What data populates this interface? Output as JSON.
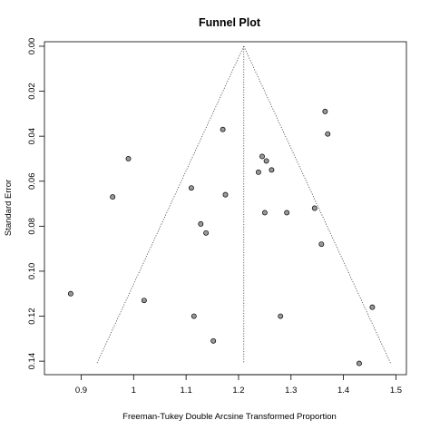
{
  "chart_data": {
    "type": "scatter",
    "title": "Funnel Plot",
    "xlabel": "Freeman-Tukey Double Arcsine Transformed Proportion",
    "ylabel": "Standard Error",
    "xlim": [
      0.83,
      1.52
    ],
    "ylim": [
      0.146,
      -0.002
    ],
    "y_axis_reversed": true,
    "x_ticks": [
      0.9,
      1.0,
      1.1,
      1.2,
      1.3,
      1.4,
      1.5
    ],
    "x_tick_labels": [
      "0.9",
      "1",
      "1.1",
      "1.2",
      "1.3",
      "1.4",
      "1.5"
    ],
    "y_ticks": [
      0.0,
      0.02,
      0.04,
      0.06,
      0.08,
      0.1,
      0.12,
      0.14
    ],
    "y_tick_labels": [
      "0.00",
      "0.02",
      "0.04",
      "0.06",
      "0.08",
      "0.10",
      "0.12",
      "0.14"
    ],
    "pooled_estimate": 1.21,
    "funnel": {
      "apex": [
        1.21,
        0.0
      ],
      "left_base": [
        0.93,
        0.141
      ],
      "right_base": [
        1.49,
        0.141
      ]
    },
    "grid": false,
    "legend": "none",
    "marker_color": "#999999",
    "points": [
      {
        "x": 1.365,
        "y": 0.029
      },
      {
        "x": 1.17,
        "y": 0.037
      },
      {
        "x": 1.37,
        "y": 0.039
      },
      {
        "x": 0.99,
        "y": 0.05
      },
      {
        "x": 1.245,
        "y": 0.049
      },
      {
        "x": 1.253,
        "y": 0.051
      },
      {
        "x": 1.263,
        "y": 0.055
      },
      {
        "x": 1.238,
        "y": 0.056
      },
      {
        "x": 1.11,
        "y": 0.063
      },
      {
        "x": 0.96,
        "y": 0.067
      },
      {
        "x": 1.175,
        "y": 0.066
      },
      {
        "x": 1.345,
        "y": 0.072
      },
      {
        "x": 1.25,
        "y": 0.074
      },
      {
        "x": 1.292,
        "y": 0.074
      },
      {
        "x": 1.128,
        "y": 0.079
      },
      {
        "x": 1.138,
        "y": 0.083
      },
      {
        "x": 1.358,
        "y": 0.088
      },
      {
        "x": 0.88,
        "y": 0.11
      },
      {
        "x": 1.02,
        "y": 0.113
      },
      {
        "x": 1.455,
        "y": 0.116
      },
      {
        "x": 1.115,
        "y": 0.12
      },
      {
        "x": 1.28,
        "y": 0.12
      },
      {
        "x": 1.152,
        "y": 0.131
      },
      {
        "x": 1.43,
        "y": 0.141
      }
    ]
  }
}
